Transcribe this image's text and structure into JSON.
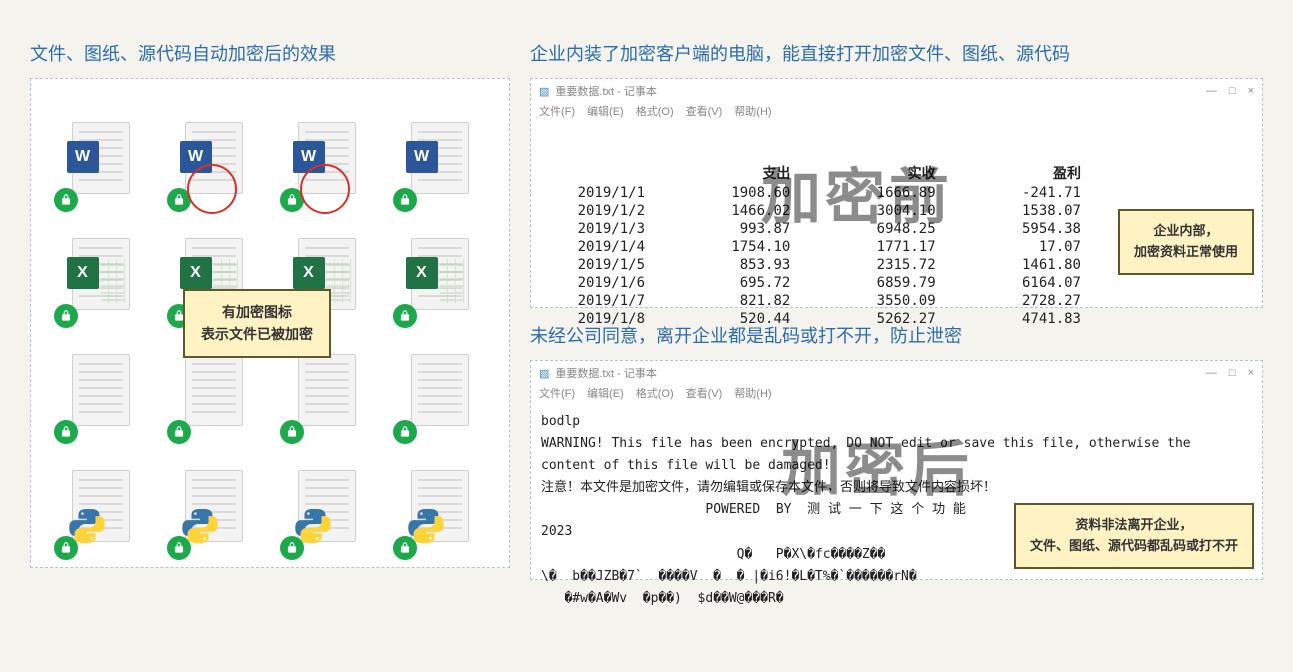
{
  "left": {
    "title": "文件、图纸、源代码自动加密后的效果",
    "callout_line1": "有加密图标",
    "callout_line2": "表示文件已被加密"
  },
  "icons": {
    "word_letter": "W",
    "excel_letter": "X"
  },
  "right_top": {
    "title": "企业内装了加密客户端的电脑，能直接打开加密文件、图纸、源代码",
    "watermark": "加密前",
    "callout_line1": "企业内部，",
    "callout_line2": "加密资料正常使用"
  },
  "notepad": {
    "window_title": "重要数据.txt - 记事本",
    "menu": [
      "文件(F)",
      "编辑(E)",
      "格式(O)",
      "查看(V)",
      "帮助(H)"
    ],
    "min": "—",
    "max": "□",
    "close": "×"
  },
  "table": {
    "columns": [
      "",
      "支出",
      "实收",
      "盈利"
    ],
    "rows": [
      [
        "2019/1/1",
        "1908.60",
        "1666.89",
        "-241.71"
      ],
      [
        "2019/1/2",
        "1466.02",
        "3004.10",
        "1538.07"
      ],
      [
        "2019/1/3",
        "993.87",
        "6948.25",
        "5954.38"
      ],
      [
        "2019/1/4",
        "1754.10",
        "1771.17",
        "17.07"
      ],
      [
        "2019/1/5",
        "853.93",
        "2315.72",
        "1461.80"
      ],
      [
        "2019/1/6",
        "695.72",
        "6859.79",
        "6164.07"
      ],
      [
        "2019/1/7",
        "821.82",
        "3550.09",
        "2728.27"
      ],
      [
        "2019/1/8",
        "520.44",
        "5262.27",
        "4741.83"
      ]
    ]
  },
  "right_bottom": {
    "title": "未经公司同意，离开企业都是乱码或打不开，防止泄密",
    "watermark": "加密后",
    "callout_line1": "资料非法离开企业，",
    "callout_line2": "文件、图纸、源代码都乱码或打不开"
  },
  "garbled": {
    "line1": "bodlp",
    "line2": "WARNING! This file has been encrypted, DO NOT edit or save this file, otherwise the",
    "line3": "content of this file will be damaged!",
    "line4": "注意！本文件是加密文件，请勿编辑或保存本文件，否则将导致文件内容损坏！",
    "line5": "                     POWERED  BY  测 试 一 下 这 个 功 能",
    "line6": "2023",
    "line7": "                         Q�   P�X\\�fc����Z��",
    "line8": "\\�  b��JZB�7`  ����V  �  � |�i6!�L�T%�`������rN�",
    "line9": "   �#w�A�Wv  �p��)  $d��W@���R�"
  },
  "colors": {
    "title": "#2b6cb0",
    "panel_border": "#b6c3d2",
    "lock_green": "#1ba94c",
    "word_blue": "#2b579a",
    "excel_green": "#217346",
    "red_circle": "#d93025",
    "callout_bg": "#fff3c4",
    "callout_border": "#5c5a2b",
    "py_blue": "#3776ab",
    "py_yellow": "#ffd43b"
  }
}
